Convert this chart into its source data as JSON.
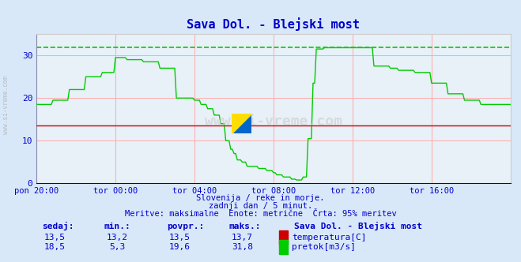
{
  "title": "Sava Dol. - Blejski most",
  "bg_color": "#d8e8f8",
  "plot_bg_color": "#e8f0f8",
  "grid_color": "#ffaaaa",
  "x_labels": [
    "pon 20:00",
    "tor 00:00",
    "tor 04:00",
    "tor 08:00",
    "tor 12:00",
    "tor 16:00"
  ],
  "x_ticks": [
    0,
    48,
    96,
    144,
    192,
    240
  ],
  "total_points": 288,
  "ylim": [
    0,
    35
  ],
  "yticks": [
    0,
    10,
    20,
    30
  ],
  "temp_color": "#cc0000",
  "flow_color": "#00cc00",
  "dashed_line_value": 31.8,
  "temp_value": 13.5,
  "subtitle1": "Slovenija / reke in morje.",
  "subtitle2": "zadnji dan / 5 minut.",
  "subtitle3": "Meritve: maksimalne  Enote: metrične  Črta: 95% meritev",
  "footer_title": "Sava Dol. - Blejski most",
  "footer_cols": [
    "sedaj:",
    "min.:",
    "povpr.:",
    "maks.:"
  ],
  "footer_temp": [
    "13,5",
    "13,2",
    "13,5",
    "13,7"
  ],
  "footer_flow": [
    "18,5",
    "5,3",
    "19,6",
    "31,8"
  ],
  "watermark_text": "www.si-vreme.com",
  "left_label": "www.si-vreme.com",
  "axis_color": "#0000cc"
}
